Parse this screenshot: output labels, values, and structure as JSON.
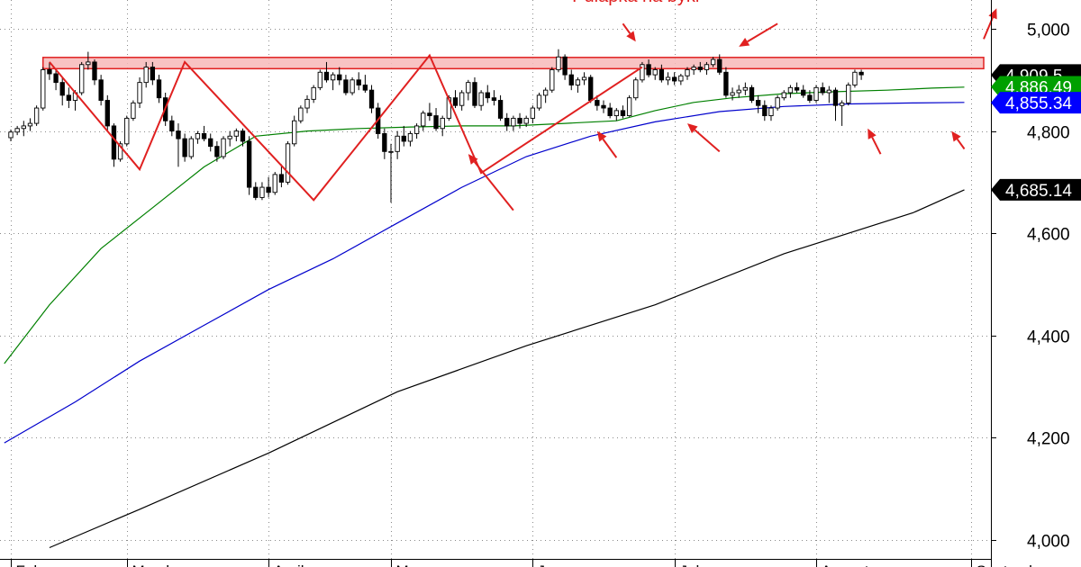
{
  "chart_data": {
    "type": "candlestick",
    "title": "",
    "xlabel": "",
    "ylabel": "",
    "ylim": [
      3985,
      5055
    ],
    "y_ticks": [
      {
        "value": 4000,
        "label": "4,000"
      },
      {
        "value": 4200,
        "label": "4,200"
      },
      {
        "value": 4400,
        "label": "4,400"
      },
      {
        "value": 4600,
        "label": "4,600"
      },
      {
        "value": 4800,
        "label": "4,800"
      },
      {
        "value": 5000,
        "label": "5,000"
      }
    ],
    "x_months": [
      {
        "label": "Feb",
        "day": 0
      },
      {
        "label": "March",
        "day": 18
      },
      {
        "label": "April",
        "day": 40
      },
      {
        "label": "May",
        "day": 59
      },
      {
        "label": "June",
        "day": 81
      },
      {
        "label": "July",
        "day": 103
      },
      {
        "label": "August",
        "day": 125
      },
      {
        "label": "September",
        "day": 149
      }
    ],
    "days_total": 152,
    "candles": [
      [
        4787,
        4803,
        4780,
        4798
      ],
      [
        4798,
        4810,
        4792,
        4805
      ],
      [
        4805,
        4820,
        4790,
        4810
      ],
      [
        4810,
        4825,
        4800,
        4815
      ],
      [
        4815,
        4850,
        4810,
        4845
      ],
      [
        4845,
        4925,
        4840,
        4920
      ],
      [
        4920,
        4935,
        4900,
        4912
      ],
      [
        4912,
        4920,
        4880,
        4895
      ],
      [
        4895,
        4905,
        4850,
        4870
      ],
      [
        4870,
        4885,
        4845,
        4860
      ],
      [
        4860,
        4880,
        4840,
        4875
      ],
      [
        4875,
        4935,
        4870,
        4930
      ],
      [
        4930,
        4955,
        4920,
        4935
      ],
      [
        4935,
        4940,
        4890,
        4900
      ],
      [
        4900,
        4910,
        4850,
        4860
      ],
      [
        4860,
        4870,
        4800,
        4810
      ],
      [
        4810,
        4815,
        4730,
        4745
      ],
      [
        4745,
        4780,
        4740,
        4775
      ],
      [
        4775,
        4830,
        4770,
        4825
      ],
      [
        4825,
        4860,
        4820,
        4855
      ],
      [
        4855,
        4905,
        4845,
        4895
      ],
      [
        4895,
        4935,
        4885,
        4925
      ],
      [
        4925,
        4935,
        4890,
        4900
      ],
      [
        4900,
        4910,
        4855,
        4865
      ],
      [
        4865,
        4875,
        4810,
        4820
      ],
      [
        4820,
        4830,
        4790,
        4800
      ],
      [
        4800,
        4815,
        4730,
        4785
      ],
      [
        4785,
        4795,
        4740,
        4750
      ],
      [
        4750,
        4790,
        4745,
        4785
      ],
      [
        4785,
        4800,
        4775,
        4795
      ],
      [
        4795,
        4810,
        4780,
        4785
      ],
      [
        4785,
        4795,
        4760,
        4770
      ],
      [
        4770,
        4780,
        4740,
        4750
      ],
      [
        4750,
        4790,
        4745,
        4785
      ],
      [
        4785,
        4800,
        4770,
        4790
      ],
      [
        4790,
        4805,
        4780,
        4800
      ],
      [
        4800,
        4805,
        4770,
        4780
      ],
      [
        4780,
        4790,
        4675,
        4690
      ],
      [
        4690,
        4700,
        4665,
        4670
      ],
      [
        4670,
        4700,
        4665,
        4690
      ],
      [
        4690,
        4710,
        4670,
        4680
      ],
      [
        4680,
        4720,
        4675,
        4715
      ],
      [
        4715,
        4735,
        4690,
        4700
      ],
      [
        4700,
        4780,
        4695,
        4775
      ],
      [
        4775,
        4830,
        4770,
        4820
      ],
      [
        4820,
        4850,
        4815,
        4845
      ],
      [
        4845,
        4870,
        4835,
        4862
      ],
      [
        4862,
        4890,
        4855,
        4885
      ],
      [
        4885,
        4920,
        4880,
        4915
      ],
      [
        4915,
        4935,
        4895,
        4900
      ],
      [
        4900,
        4915,
        4880,
        4910
      ],
      [
        4910,
        4925,
        4890,
        4900
      ],
      [
        4900,
        4910,
        4870,
        4875
      ],
      [
        4875,
        4905,
        4870,
        4900
      ],
      [
        4900,
        4915,
        4880,
        4890
      ],
      [
        4890,
        4910,
        4875,
        4880
      ],
      [
        4880,
        4890,
        4835,
        4845
      ],
      [
        4845,
        4855,
        4785,
        4795
      ],
      [
        4795,
        4805,
        4745,
        4760
      ],
      [
        4760,
        4775,
        4660,
        4760
      ],
      [
        4760,
        4800,
        4745,
        4790
      ],
      [
        4790,
        4810,
        4770,
        4780
      ],
      [
        4780,
        4800,
        4770,
        4795
      ],
      [
        4795,
        4815,
        4785,
        4810
      ],
      [
        4810,
        4840,
        4800,
        4835
      ],
      [
        4835,
        4855,
        4820,
        4830
      ],
      [
        4830,
        4845,
        4800,
        4805
      ],
      [
        4805,
        4830,
        4790,
        4825
      ],
      [
        4825,
        4870,
        4820,
        4865
      ],
      [
        4865,
        4880,
        4845,
        4850
      ],
      [
        4850,
        4880,
        4840,
        4875
      ],
      [
        4875,
        4900,
        4860,
        4895
      ],
      [
        4895,
        4905,
        4845,
        4850
      ],
      [
        4850,
        4880,
        4840,
        4875
      ],
      [
        4875,
        4890,
        4855,
        4865
      ],
      [
        4865,
        4880,
        4850,
        4860
      ],
      [
        4860,
        4870,
        4820,
        4825
      ],
      [
        4825,
        4835,
        4800,
        4810
      ],
      [
        4810,
        4830,
        4800,
        4825
      ],
      [
        4825,
        4835,
        4805,
        4815
      ],
      [
        4815,
        4830,
        4808,
        4825
      ],
      [
        4825,
        4850,
        4815,
        4845
      ],
      [
        4845,
        4875,
        4840,
        4870
      ],
      [
        4870,
        4885,
        4855,
        4880
      ],
      [
        4880,
        4925,
        4875,
        4920
      ],
      [
        4920,
        4960,
        4915,
        4945
      ],
      [
        4945,
        4950,
        4900,
        4910
      ],
      [
        4910,
        4920,
        4880,
        4890
      ],
      [
        4890,
        4905,
        4875,
        4900
      ],
      [
        4900,
        4915,
        4890,
        4905
      ],
      [
        4905,
        4910,
        4855,
        4860
      ],
      [
        4860,
        4870,
        4840,
        4850
      ],
      [
        4850,
        4860,
        4835,
        4845
      ],
      [
        4845,
        4855,
        4825,
        4830
      ],
      [
        4830,
        4845,
        4820,
        4840
      ],
      [
        4840,
        4850,
        4825,
        4830
      ],
      [
        4830,
        4870,
        4828,
        4865
      ],
      [
        4865,
        4905,
        4860,
        4900
      ],
      [
        4900,
        4935,
        4895,
        4930
      ],
      [
        4930,
        4940,
        4905,
        4910
      ],
      [
        4910,
        4925,
        4900,
        4920
      ],
      [
        4920,
        4930,
        4895,
        4900
      ],
      [
        4900,
        4915,
        4890,
        4905
      ],
      [
        4905,
        4915,
        4890,
        4898
      ],
      [
        4898,
        4912,
        4890,
        4908
      ],
      [
        4908,
        4925,
        4900,
        4920
      ],
      [
        4920,
        4930,
        4910,
        4925
      ],
      [
        4925,
        4935,
        4915,
        4920
      ],
      [
        4920,
        4935,
        4910,
        4930
      ],
      [
        4930,
        4945,
        4925,
        4940
      ],
      [
        4940,
        4950,
        4910,
        4915
      ],
      [
        4915,
        4925,
        4865,
        4870
      ],
      [
        4870,
        4885,
        4860,
        4875
      ],
      [
        4875,
        4890,
        4865,
        4880
      ],
      [
        4880,
        4895,
        4870,
        4885
      ],
      [
        4885,
        4890,
        4855,
        4860
      ],
      [
        4860,
        4870,
        4835,
        4850
      ],
      [
        4850,
        4860,
        4820,
        4830
      ],
      [
        4830,
        4850,
        4820,
        4845
      ],
      [
        4845,
        4870,
        4840,
        4865
      ],
      [
        4865,
        4880,
        4860,
        4875
      ],
      [
        4875,
        4890,
        4865,
        4885
      ],
      [
        4885,
        4895,
        4875,
        4880
      ],
      [
        4880,
        4890,
        4865,
        4870
      ],
      [
        4870,
        4880,
        4855,
        4860
      ],
      [
        4860,
        4890,
        4855,
        4885
      ],
      [
        4885,
        4895,
        4870,
        4875
      ],
      [
        4875,
        4888,
        4855,
        4880
      ],
      [
        4880,
        4885,
        4820,
        4850
      ],
      [
        4850,
        4860,
        4810,
        4855
      ],
      [
        4855,
        4895,
        4850,
        4890
      ],
      [
        4890,
        4920,
        4885,
        4915
      ],
      [
        4915,
        4920,
        4900,
        4910
      ]
    ],
    "series": [
      {
        "name": "",
        "color": "#008000",
        "points": [
          [
            -1,
            4345
          ],
          [
            6,
            4460
          ],
          [
            14,
            4570
          ],
          [
            22,
            4650
          ],
          [
            30,
            4730
          ],
          [
            38,
            4790
          ],
          [
            46,
            4800
          ],
          [
            54,
            4805
          ],
          [
            62,
            4808
          ],
          [
            70,
            4810
          ],
          [
            78,
            4810
          ],
          [
            86,
            4815
          ],
          [
            94,
            4820
          ],
          [
            100,
            4840
          ],
          [
            106,
            4856
          ],
          [
            112,
            4865
          ],
          [
            120,
            4873
          ],
          [
            128,
            4877
          ],
          [
            136,
            4880
          ],
          [
            143,
            4884
          ],
          [
            148,
            4886
          ]
        ]
      },
      {
        "name": "",
        "color": "#0000cc",
        "points": [
          [
            -1,
            4190
          ],
          [
            10,
            4270
          ],
          [
            20,
            4350
          ],
          [
            30,
            4420
          ],
          [
            40,
            4490
          ],
          [
            50,
            4550
          ],
          [
            60,
            4620
          ],
          [
            70,
            4690
          ],
          [
            80,
            4750
          ],
          [
            90,
            4790
          ],
          [
            100,
            4818
          ],
          [
            110,
            4838
          ],
          [
            120,
            4848
          ],
          [
            130,
            4853
          ],
          [
            140,
            4855
          ],
          [
            148,
            4856
          ]
        ]
      },
      {
        "name": "",
        "color": "#000000",
        "points": [
          [
            6,
            3985
          ],
          [
            20,
            4060
          ],
          [
            40,
            4170
          ],
          [
            60,
            4290
          ],
          [
            80,
            4380
          ],
          [
            100,
            4460
          ],
          [
            120,
            4560
          ],
          [
            140,
            4640
          ],
          [
            148,
            4685
          ]
        ]
      }
    ],
    "price_labels": [
      {
        "label": "4,909.5",
        "value": 4909.5,
        "bg": "#000000"
      },
      {
        "label": "4,886.49",
        "value": 4886.49,
        "bg": "#00a000"
      },
      {
        "label": "4,855.34",
        "value": 4855.34,
        "bg": "#0000ff"
      },
      {
        "label": "4,685.14",
        "value": 4685.14,
        "bg": "#000000"
      }
    ],
    "resistance_zone": {
      "from_day": 5,
      "to_day": 151,
      "low": 4922,
      "high": 4944,
      "fill": "#f7b9b9",
      "stroke": "#e02020"
    },
    "pattern_line": {
      "color": "#e02020",
      "points": [
        [
          6,
          4935
        ],
        [
          20,
          4725
        ],
        [
          27,
          4935
        ],
        [
          47,
          4665
        ],
        [
          65,
          4948
        ],
        [
          73,
          4718
        ],
        [
          98,
          4925
        ]
      ]
    },
    "annotations": [
      {
        "text": "Pułapka na byki",
        "color": "#e02020",
        "day": 97,
        "value": 5035
      }
    ],
    "arrows": {
      "color": "#e02020",
      "items": [
        {
          "from": [
            95,
            5010
          ],
          "to": [
            97,
            4975
          ]
        },
        {
          "from": [
            119,
            5010
          ],
          "to": [
            113,
            4965
          ]
        },
        {
          "from": [
            151,
            4980
          ],
          "to": [
            153,
            5040
          ]
        },
        {
          "from": [
            78,
            4645
          ],
          "to": [
            71,
            4755
          ]
        },
        {
          "from": [
            94,
            4748
          ],
          "to": [
            91,
            4800
          ]
        },
        {
          "from": [
            110,
            4760
          ],
          "to": [
            105,
            4815
          ]
        },
        {
          "from": [
            135,
            4755
          ],
          "to": [
            133,
            4805
          ]
        },
        {
          "from": [
            148,
            4765
          ],
          "to": [
            146,
            4800
          ]
        }
      ]
    }
  }
}
